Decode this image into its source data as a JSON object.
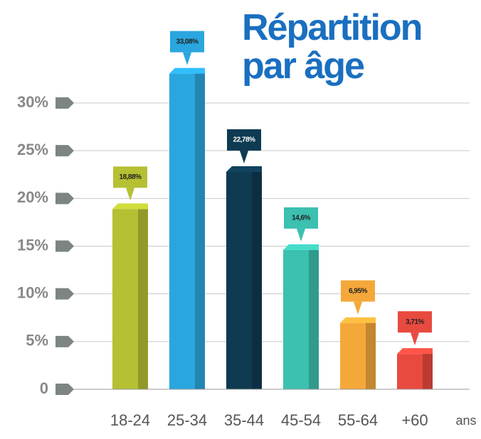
{
  "chart_data": {
    "type": "bar",
    "title": "Répartition par âge",
    "categories": [
      "18-24",
      "25-34",
      "35-44",
      "45-54",
      "55-64",
      "+60"
    ],
    "values": [
      18.88,
      33.08,
      22.78,
      14.6,
      6.95,
      3.71
    ],
    "value_labels": [
      "18,88%",
      "33,08%",
      "22,78%",
      "14,6%",
      "6,95%",
      "3,71%"
    ],
    "colors": [
      "#b5c033",
      "#2aa6de",
      "#0e3a52",
      "#3cc0b0",
      "#f5a83a",
      "#e84a3f"
    ],
    "x_label": "ans",
    "ylim": [
      0,
      30
    ],
    "yticks": [
      0,
      {
        "value": 5,
        "label": "5%"
      },
      {
        "value": 10,
        "label": "10%"
      },
      {
        "value": 15,
        "label": "15%"
      },
      {
        "value": 20,
        "label": "20%"
      },
      {
        "value": 25,
        "label": "25%"
      },
      {
        "value": 30,
        "label": "30%"
      }
    ],
    "grid": true
  }
}
